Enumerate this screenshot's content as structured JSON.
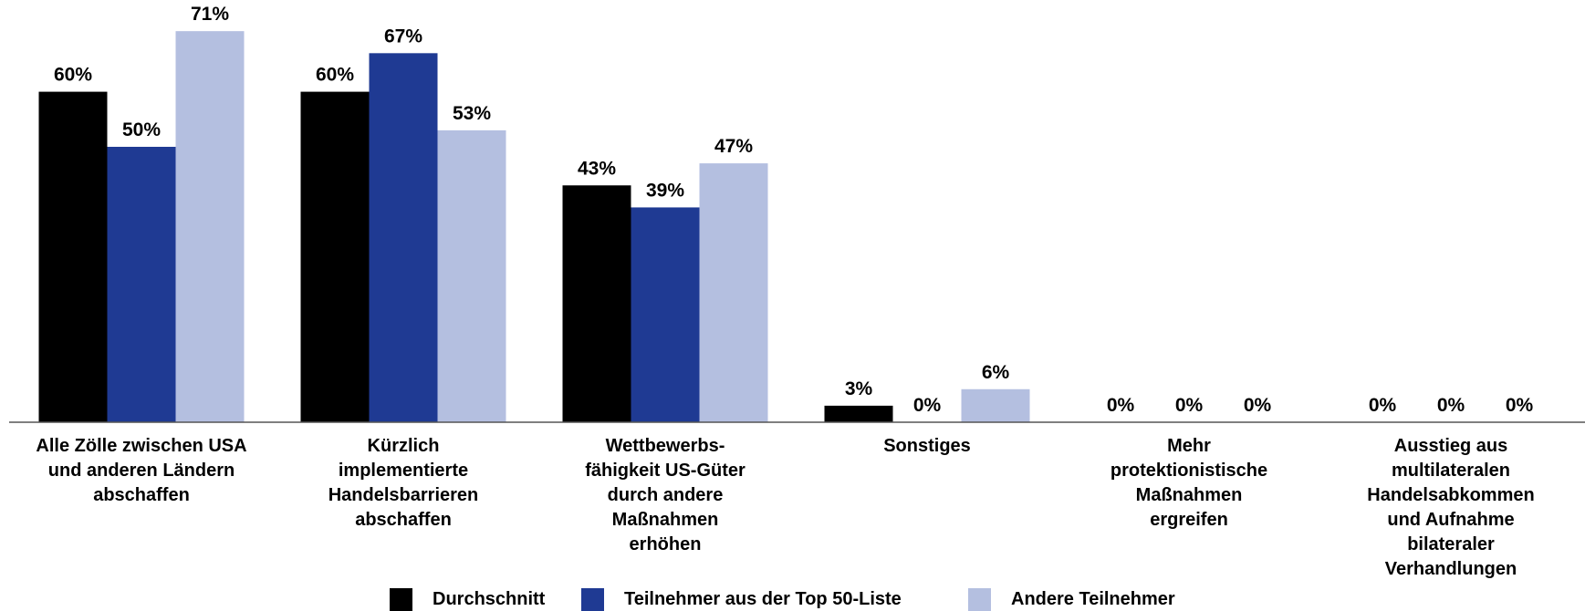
{
  "chart_data": {
    "type": "bar",
    "categories": [
      "Alle Zölle zwischen USA\nund anderen Ländern\nabschaffen",
      "Kürzlich\nimplementierte\nHandelsbarrieren\nabschaffen",
      "Wettbewerbs-\nfähigkeit US-Güter\ndurch andere\nMaßnahmen\nerhöhen",
      "Sonstiges",
      "Mehr\nprotektionistische\nMaßnahmen\nergreifen",
      "Ausstieg aus\nmultilateralen\nHandelsabkommen\nund Aufnahme\nbilateraler\nVerhandlungen"
    ],
    "series": [
      {
        "name": "Durchschnitt",
        "color": "#000000",
        "values": [
          60,
          60,
          43,
          3,
          0,
          0
        ],
        "value_labels": [
          "60%",
          "60%",
          "43%",
          "3%",
          "0%",
          "0%"
        ]
      },
      {
        "name": "Teilnehmer aus der Top 50-Liste",
        "color": "#1f3a93",
        "values": [
          50,
          67,
          39,
          0,
          0,
          0
        ],
        "value_labels": [
          "50%",
          "67%",
          "39%",
          "0%",
          "0%",
          "0%"
        ]
      },
      {
        "name": "Andere Teilnehmer",
        "color": "#b4bfe0",
        "values": [
          71,
          53,
          47,
          6,
          0,
          0
        ],
        "value_labels": [
          "71%",
          "53%",
          "47%",
          "6%",
          "0%",
          "0%"
        ]
      }
    ],
    "ylim": [
      0,
      75
    ],
    "legend": "bottom"
  }
}
